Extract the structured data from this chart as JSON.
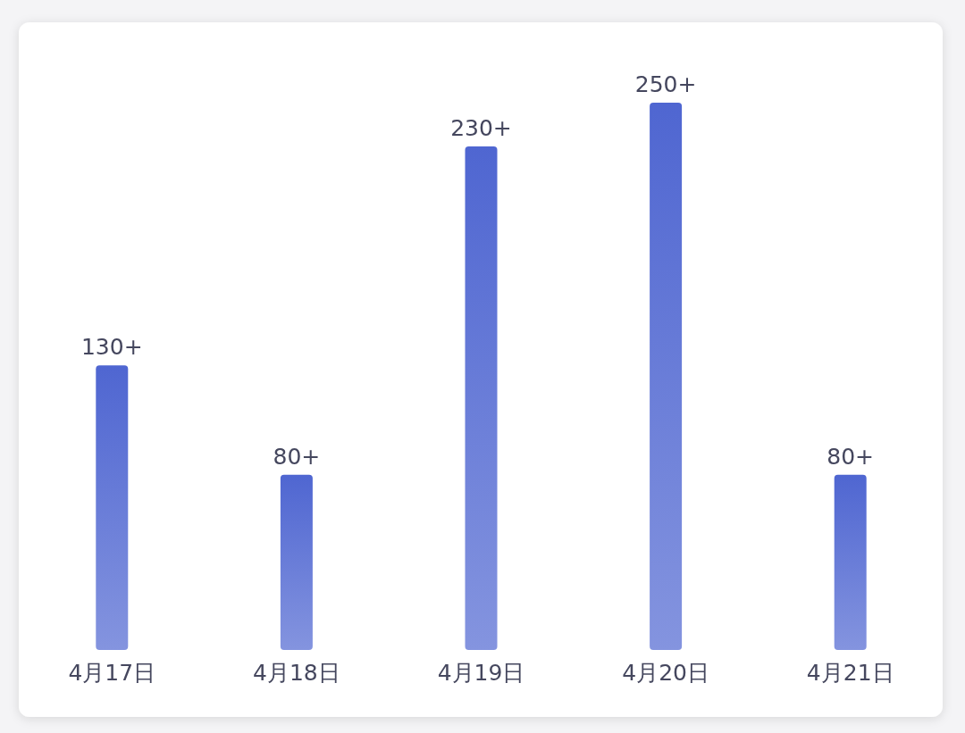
{
  "chart_data": {
    "type": "bar",
    "categories": [
      "4月17日",
      "4月18日",
      "4月19日",
      "4月20日",
      "4月21日"
    ],
    "values": [
      130,
      80,
      230,
      250,
      80
    ],
    "value_labels": [
      "130+",
      "80+",
      "230+",
      "250+",
      "80+"
    ],
    "color": "#4f66d1"
  }
}
